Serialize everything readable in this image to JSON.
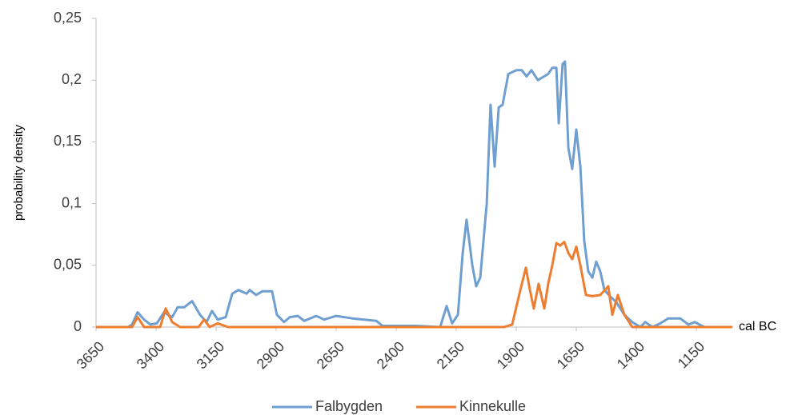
{
  "chart_data": {
    "type": "line",
    "ylabel": "probability density",
    "xlabel": "cal BC",
    "xlim": [
      3650,
      1000
    ],
    "xticks": [
      3650,
      3400,
      3150,
      2900,
      2650,
      2400,
      2150,
      1900,
      1650,
      1400,
      1150
    ],
    "ylim": [
      0,
      0.25
    ],
    "yticks": [
      0,
      {
        "value": 0.05,
        "label": "0,05"
      },
      {
        "value": 0.1,
        "label": "0,1"
      },
      {
        "value": 0.15,
        "label": "0,15"
      },
      {
        "value": 0.2,
        "label": "0,2"
      },
      {
        "value": 0.25,
        "label": "0,25"
      }
    ],
    "legend": "bottom",
    "series": [
      {
        "name": "Falbygden",
        "color": "#6f9fd0",
        "x": [
          3650,
          3517,
          3500,
          3477,
          3450,
          3423,
          3397,
          3367,
          3333,
          3310,
          3283,
          3250,
          3217,
          3190,
          3167,
          3143,
          3110,
          3083,
          3057,
          3023,
          3010,
          2983,
          2957,
          2917,
          2897,
          2867,
          2843,
          2810,
          2783,
          2733,
          2700,
          2650,
          2583,
          2483,
          2457,
          2317,
          2217,
          2190,
          2167,
          2143,
          2123,
          2107,
          2083,
          2067,
          2050,
          2023,
          2007,
          1990,
          1973,
          1957,
          1933,
          1900,
          1877,
          1857,
          1837,
          1810,
          1767,
          1750,
          1733,
          1723,
          1707,
          1697,
          1683,
          1667,
          1650,
          1633,
          1617,
          1600,
          1583,
          1567,
          1550,
          1533,
          1510,
          1483,
          1450,
          1417,
          1383,
          1363,
          1333,
          1300,
          1267,
          1217,
          1183,
          1157,
          1117,
          1000
        ],
        "values": [
          0,
          0,
          0.002,
          0.012,
          0.006,
          0.002,
          0.003,
          0.012,
          0.008,
          0.016,
          0.016,
          0.021,
          0.01,
          0.004,
          0.013,
          0.006,
          0.008,
          0.027,
          0.03,
          0.027,
          0.03,
          0.026,
          0.029,
          0.029,
          0.01,
          0.004,
          0.008,
          0.009,
          0.005,
          0.009,
          0.006,
          0.009,
          0.007,
          0.005,
          0.001,
          0.001,
          0,
          0.017,
          0.003,
          0.01,
          0.06,
          0.087,
          0.05,
          0.033,
          0.04,
          0.1,
          0.18,
          0.13,
          0.178,
          0.18,
          0.205,
          0.208,
          0.208,
          0.203,
          0.208,
          0.2,
          0.205,
          0.21,
          0.21,
          0.165,
          0.213,
          0.215,
          0.145,
          0.128,
          0.16,
          0.13,
          0.07,
          0.045,
          0.04,
          0.053,
          0.045,
          0.03,
          0.025,
          0.02,
          0.01,
          0.004,
          0,
          0.004,
          0,
          0.003,
          0.007,
          0.007,
          0.002,
          0.004,
          0,
          0
        ]
      },
      {
        "name": "Kinnekulle",
        "color": "#ed7d31",
        "x": [
          3650,
          3500,
          3477,
          3450,
          3383,
          3360,
          3333,
          3300,
          3223,
          3200,
          3177,
          3143,
          3100,
          1950,
          1917,
          1883,
          1860,
          1843,
          1827,
          1807,
          1783,
          1767,
          1750,
          1733,
          1717,
          1700,
          1683,
          1667,
          1650,
          1633,
          1610,
          1583,
          1550,
          1517,
          1500,
          1477,
          1450,
          1417,
          1000
        ],
        "values": [
          0,
          0,
          0.008,
          0,
          0,
          0.015,
          0.004,
          0,
          0,
          0.006,
          0,
          0.003,
          0,
          0,
          0.002,
          0.03,
          0.048,
          0.03,
          0.015,
          0.035,
          0.015,
          0.035,
          0.05,
          0.068,
          0.066,
          0.069,
          0.06,
          0.055,
          0.065,
          0.05,
          0.026,
          0.025,
          0.026,
          0.033,
          0.01,
          0.026,
          0.01,
          0,
          0
        ]
      }
    ]
  }
}
